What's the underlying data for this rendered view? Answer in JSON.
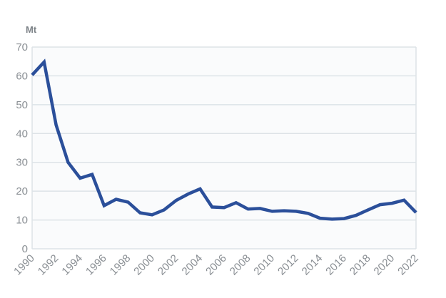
{
  "chart_data": {
    "type": "line",
    "title": "",
    "xlabel": "",
    "ylabel": "Mt",
    "ylim": [
      0,
      70
    ],
    "xlim": [
      1990,
      2022
    ],
    "grid": true,
    "legend": "none",
    "yticks": [
      0,
      10,
      20,
      30,
      40,
      50,
      60,
      70
    ],
    "xticks": [
      1990,
      1992,
      1994,
      1996,
      1998,
      2000,
      2002,
      2004,
      2006,
      2008,
      2010,
      2012,
      2014,
      2016,
      2018,
      2020,
      2022
    ],
    "colors": {
      "line": "#2b4f9a",
      "grid": "#dde3e7",
      "plot_bg": "#fafbfc",
      "tick": "#8a8f94"
    },
    "series": [
      {
        "name": "Mt",
        "x": [
          1990,
          1991,
          1992,
          1993,
          1994,
          1995,
          1996,
          1997,
          1998,
          1999,
          2000,
          2001,
          2002,
          2003,
          2004,
          2005,
          2006,
          2007,
          2008,
          2009,
          2010,
          2011,
          2012,
          2013,
          2014,
          2015,
          2016,
          2017,
          2018,
          2019,
          2020,
          2021,
          2022
        ],
        "values": [
          60.3,
          64.8,
          43,
          30,
          24.5,
          25.8,
          15,
          17.2,
          16.2,
          12.5,
          11.8,
          13.5,
          16.8,
          19,
          20.8,
          14.5,
          14.3,
          16,
          13.8,
          14,
          13,
          13.2,
          13,
          12.3,
          10.6,
          10.3,
          10.5,
          11.6,
          13.5,
          15.3,
          15.8,
          16.9,
          12.6
        ]
      }
    ]
  }
}
